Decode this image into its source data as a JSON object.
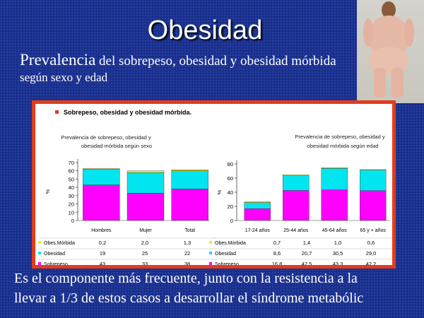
{
  "slide": {
    "title": "Obesidad",
    "subtitle_big": "Prevalencia",
    "subtitle_rest": " del sobrepeso, obesidad y obesidad mórbida",
    "subtitle_line2": "según sexo y edad",
    "bottom_line1": "Es el componente más frecuente, junto con la resistencia a la",
    "bottom_line2": "llevar a 1/3 de estos casos a desarrollar el síndrome metabólic"
  },
  "panel": {
    "heading": "Sobrepeso, obesidad y obesidad mórbida."
  },
  "colors": {
    "sobrepeso": "#ff00ff",
    "obesidad": "#00e5ef",
    "obes_morbida": "#f5f500",
    "accent": "#e23c1a"
  },
  "chart_data": [
    {
      "type": "bar",
      "stacked": true,
      "title": "Prevalencia de sobrepeso, obesidad y obesidad mórbida según sexo",
      "ylabel": "%",
      "ylim": [
        0,
        70
      ],
      "yticks": [
        0,
        10,
        20,
        30,
        40,
        50,
        60,
        70
      ],
      "categories": [
        "Hombres",
        "Mujer",
        "Total"
      ],
      "series": [
        {
          "name": "Sobrepeso",
          "labels": [
            "43",
            "33",
            "38"
          ],
          "values": [
            43,
            33,
            38
          ]
        },
        {
          "name": "Obesidad",
          "labels": [
            "19",
            "25",
            "22"
          ],
          "values": [
            19,
            25,
            22
          ]
        },
        {
          "name": "Obes.Mórbida",
          "labels": [
            "0,2",
            "2,0",
            "1,3"
          ],
          "values": [
            0.2,
            2.0,
            1.3
          ]
        }
      ]
    },
    {
      "type": "bar",
      "stacked": true,
      "title": "Prevalencia de sobrepeso, obesidad y obesidad mórbida según edad",
      "ylabel": "%",
      "ylim": [
        0,
        80
      ],
      "yticks": [
        0,
        20,
        40,
        60,
        80
      ],
      "categories": [
        "17-24 años",
        "25-44 años",
        "45-64 años",
        "65 y + años"
      ],
      "series": [
        {
          "name": "Sobrepeso",
          "labels": [
            "16,8",
            "42,5",
            "43,3",
            "42,2"
          ],
          "values": [
            16.8,
            42.5,
            43.3,
            42.2
          ]
        },
        {
          "name": "Obesidad",
          "labels": [
            "8,6",
            "20,7",
            "30,5",
            "29,0"
          ],
          "values": [
            8.6,
            20.7,
            30.5,
            29.0
          ]
        },
        {
          "name": "Obes.Mórbida",
          "labels": [
            "0,7",
            "1,4",
            "1,0",
            "0,6"
          ],
          "values": [
            0.7,
            1.4,
            1.0,
            0.6
          ]
        }
      ]
    }
  ]
}
